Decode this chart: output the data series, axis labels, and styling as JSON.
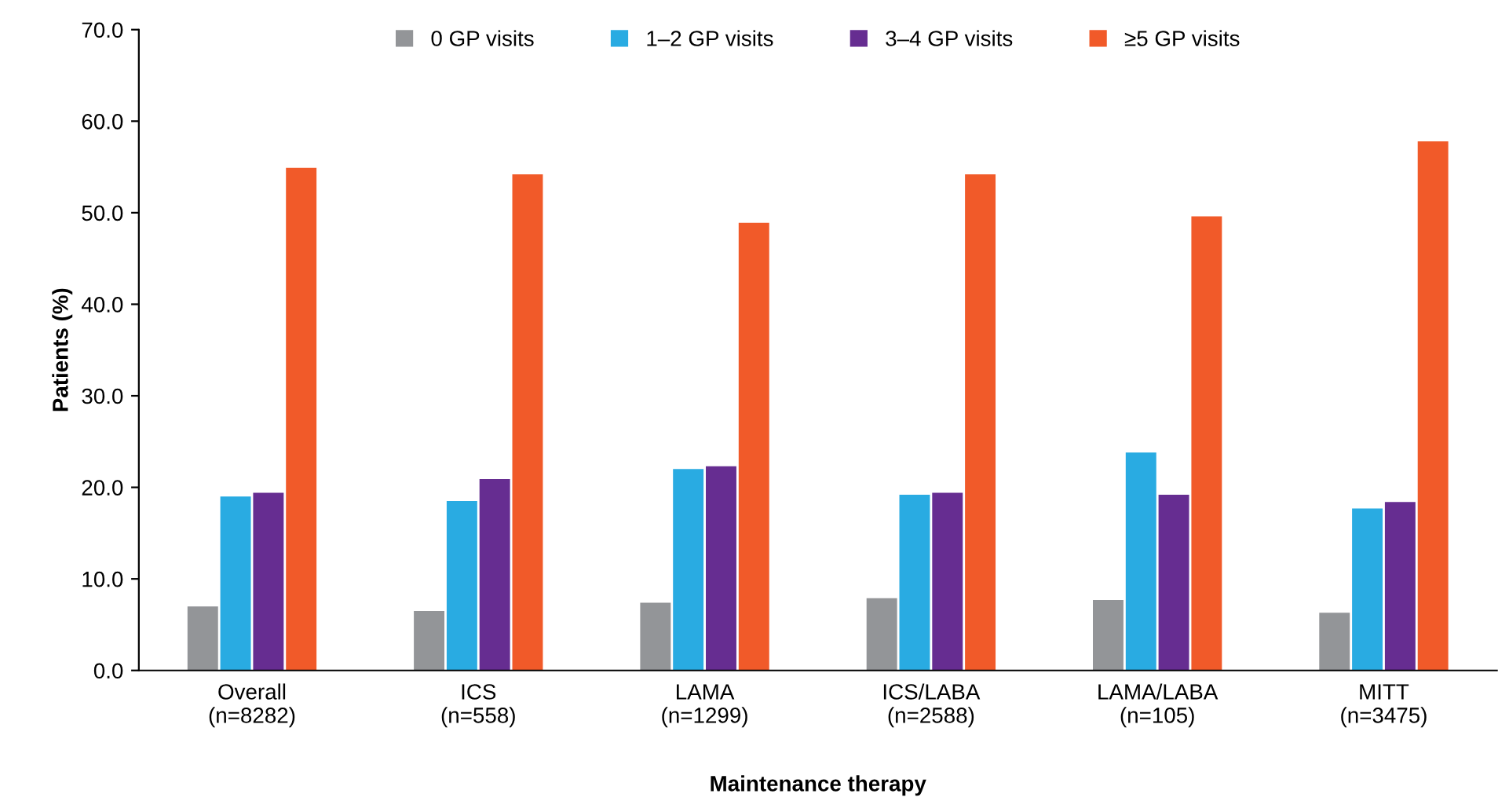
{
  "chart_data": {
    "type": "bar",
    "xlabel": "Maintenance therapy",
    "ylabel": "Patients (%)",
    "categories": [
      "Overall\n(n=8282)",
      "ICS\n(n=558)",
      "LAMA\n(n=1299)",
      "ICS/LABA\n(n=2588)",
      "LAMA/LABA\n(n=105)",
      "MITT\n(n=3475)"
    ],
    "series": [
      {
        "name": "0 GP visits",
        "color": "#939598",
        "values": [
          7.0,
          6.5,
          7.4,
          7.9,
          7.7,
          6.3
        ]
      },
      {
        "name": "1–2 GP visits",
        "color": "#29abe2",
        "values": [
          19.0,
          18.5,
          22.0,
          19.2,
          23.8,
          17.7
        ]
      },
      {
        "name": "3–4 GP visits",
        "color": "#662d91",
        "values": [
          19.4,
          20.9,
          22.3,
          19.4,
          19.2,
          18.4
        ]
      },
      {
        "name": "≥5 GP visits",
        "color": "#f15a29",
        "values": [
          54.9,
          54.2,
          48.9,
          54.2,
          49.6,
          57.8
        ]
      }
    ],
    "ylim": [
      0,
      70
    ],
    "yticks": [
      {
        "value": 0,
        "label": "0.0"
      },
      {
        "value": 10,
        "label": "10.0"
      },
      {
        "value": 20,
        "label": "20.0"
      },
      {
        "value": 30,
        "label": "30.0"
      },
      {
        "value": 40,
        "label": "40.0"
      },
      {
        "value": 50,
        "label": "50.0"
      },
      {
        "value": 60,
        "label": "60.0"
      },
      {
        "value": 70,
        "label": "70.0"
      }
    ],
    "grid": false,
    "legend": "top"
  }
}
